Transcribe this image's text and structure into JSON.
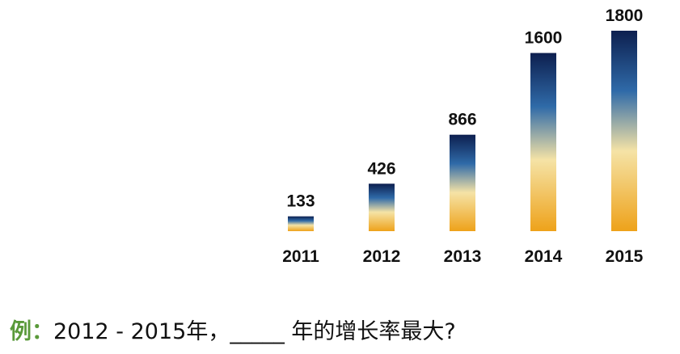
{
  "chart_data": {
    "type": "bar",
    "categories": [
      "2011",
      "2012",
      "2013",
      "2014",
      "2015"
    ],
    "values": [
      133,
      426,
      866,
      1600,
      1800
    ]
  },
  "question": {
    "label": "例：",
    "text": "2012 - 2015年，_____ 年的增长率最大?"
  }
}
